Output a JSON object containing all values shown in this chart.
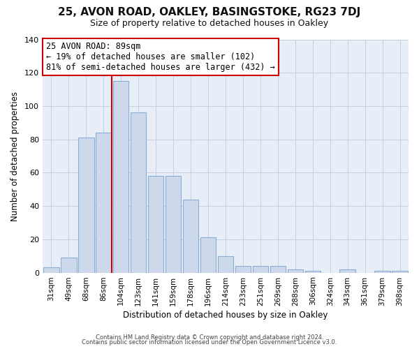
{
  "title1": "25, AVON ROAD, OAKLEY, BASINGSTOKE, RG23 7DJ",
  "title2": "Size of property relative to detached houses in Oakley",
  "xlabel": "Distribution of detached houses by size in Oakley",
  "ylabel": "Number of detached properties",
  "categories": [
    "31sqm",
    "49sqm",
    "68sqm",
    "86sqm",
    "104sqm",
    "123sqm",
    "141sqm",
    "159sqm",
    "178sqm",
    "196sqm",
    "214sqm",
    "233sqm",
    "251sqm",
    "269sqm",
    "288sqm",
    "306sqm",
    "324sqm",
    "343sqm",
    "361sqm",
    "379sqm",
    "398sqm"
  ],
  "values": [
    3,
    9,
    81,
    84,
    115,
    96,
    58,
    58,
    44,
    21,
    10,
    4,
    4,
    4,
    2,
    1,
    0,
    2,
    0,
    1,
    1
  ],
  "bar_color": "#cdd8ea",
  "bar_edge_color": "#8aadd4",
  "vline_x_index": 3,
  "vline_color": "#cc0000",
  "annotation_title": "25 AVON ROAD: 89sqm",
  "annotation_line1": "← 19% of detached houses are smaller (102)",
  "annotation_line2": "81% of semi-detached houses are larger (432) →",
  "annotation_box_facecolor": "#ffffff",
  "annotation_box_edgecolor": "#cc0000",
  "ylim": [
    0,
    140
  ],
  "yticks": [
    0,
    20,
    40,
    60,
    80,
    100,
    120,
    140
  ],
  "footer1": "Contains HM Land Registry data © Crown copyright and database right 2024.",
  "footer2": "Contains public sector information licensed under the Open Government Licence v3.0.",
  "bg_color": "#ffffff",
  "plot_bg_color": "#e8eef7",
  "grid_color": "#c8d0de",
  "title1_fontsize": 11,
  "title2_fontsize": 9
}
